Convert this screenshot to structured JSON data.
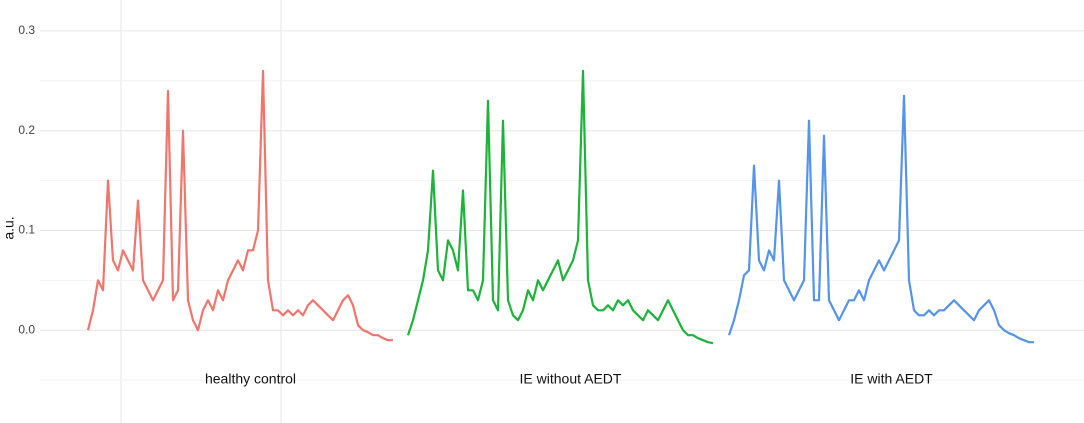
{
  "chart_data": {
    "type": "line",
    "y_label": "a.u.",
    "ylim": [
      -0.093,
      0.331
    ],
    "yticks": [
      {
        "value": 0,
        "label": "0.0"
      },
      0.1,
      0.2,
      0.3
    ],
    "y_minor_grid": [
      -0.05,
      0.05,
      0.15,
      0.25
    ],
    "grid": true,
    "series": [
      {
        "name": "healthy control",
        "color": "#f0766d",
        "values": [
          0.0,
          0.02,
          0.05,
          0.04,
          0.15,
          0.07,
          0.06,
          0.08,
          0.07,
          0.06,
          0.13,
          0.05,
          0.04,
          0.03,
          0.04,
          0.05,
          0.24,
          0.03,
          0.04,
          0.2,
          0.03,
          0.01,
          0.0,
          0.02,
          0.03,
          0.02,
          0.04,
          0.03,
          0.05,
          0.06,
          0.07,
          0.06,
          0.08,
          0.08,
          0.1,
          0.26,
          0.05,
          0.02,
          0.02,
          0.015,
          0.02,
          0.015,
          0.02,
          0.015,
          0.025,
          0.03,
          0.025,
          0.02,
          0.015,
          0.01,
          0.02,
          0.03,
          0.035,
          0.025,
          0.005,
          0.0,
          -0.002,
          -0.005,
          -0.005,
          -0.008,
          -0.01,
          -0.01
        ]
      },
      {
        "name": "IE without AEDT",
        "color": "#1db33b",
        "values": [
          -0.005,
          0.01,
          0.03,
          0.05,
          0.08,
          0.16,
          0.06,
          0.05,
          0.09,
          0.08,
          0.06,
          0.14,
          0.04,
          0.04,
          0.03,
          0.05,
          0.23,
          0.03,
          0.02,
          0.21,
          0.03,
          0.015,
          0.01,
          0.02,
          0.04,
          0.03,
          0.05,
          0.04,
          0.05,
          0.06,
          0.07,
          0.05,
          0.06,
          0.07,
          0.09,
          0.26,
          0.05,
          0.025,
          0.02,
          0.02,
          0.025,
          0.02,
          0.03,
          0.025,
          0.03,
          0.02,
          0.015,
          0.01,
          0.02,
          0.015,
          0.01,
          0.02,
          0.03,
          0.02,
          0.01,
          0.0,
          -0.005,
          -0.005,
          -0.008,
          -0.01,
          -0.012,
          -0.013
        ]
      },
      {
        "name": "IE with AEDT",
        "color": "#5594ea",
        "values": [
          -0.005,
          0.01,
          0.03,
          0.055,
          0.06,
          0.165,
          0.07,
          0.06,
          0.08,
          0.07,
          0.15,
          0.05,
          0.04,
          0.03,
          0.04,
          0.05,
          0.21,
          0.03,
          0.03,
          0.195,
          0.03,
          0.02,
          0.01,
          0.02,
          0.03,
          0.03,
          0.04,
          0.03,
          0.05,
          0.06,
          0.07,
          0.06,
          0.07,
          0.08,
          0.09,
          0.235,
          0.05,
          0.02,
          0.015,
          0.015,
          0.02,
          0.015,
          0.02,
          0.02,
          0.025,
          0.03,
          0.025,
          0.02,
          0.015,
          0.01,
          0.02,
          0.025,
          0.03,
          0.02,
          0.005,
          0.0,
          -0.003,
          -0.005,
          -0.008,
          -0.01,
          -0.012,
          -0.012
        ]
      }
    ]
  }
}
